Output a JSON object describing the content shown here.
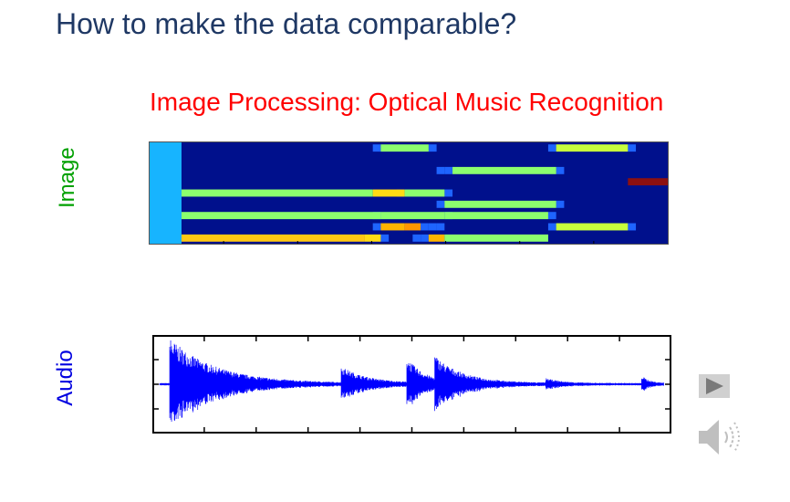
{
  "slide": {
    "title": "How to make the data comparable?",
    "subtitle": "Image Processing: Optical Music Recognition"
  },
  "labels": {
    "image": "Image",
    "audio": "Audio"
  },
  "colors": {
    "title": "#1f3864",
    "subtitle": "#ff0000",
    "image_label": "#00a000",
    "audio_label": "#0000e0",
    "roll_background": "#00108c",
    "waveform": "#0000ff"
  },
  "piano_roll": {
    "rows": 8,
    "cols": 65,
    "background": "#00108c",
    "lead_block": {
      "col_end": 4,
      "color": "#17b4ff"
    },
    "notes": [
      {
        "row": 0,
        "start": 29,
        "end": 35,
        "color": "#8cff6e"
      },
      {
        "row": 0,
        "start": 51,
        "end": 60,
        "color": "#c8ff3c"
      },
      {
        "row": 2,
        "start": 38,
        "end": 51,
        "color": "#8cff6e"
      },
      {
        "row": 3,
        "start": 60,
        "end": 65,
        "color": "#8c1010"
      },
      {
        "row": 4,
        "start": 4,
        "end": 28,
        "color": "#8cff6e"
      },
      {
        "row": 4,
        "start": 28,
        "end": 32,
        "color": "#ffdc14"
      },
      {
        "row": 4,
        "start": 32,
        "end": 37,
        "color": "#8cff6e"
      },
      {
        "row": 5,
        "start": 37,
        "end": 51,
        "color": "#8cff6e"
      },
      {
        "row": 6,
        "start": 4,
        "end": 29,
        "color": "#8cff6e"
      },
      {
        "row": 6,
        "start": 29,
        "end": 37,
        "color": "#8cff6e"
      },
      {
        "row": 6,
        "start": 37,
        "end": 50,
        "color": "#8cff6e"
      },
      {
        "row": 7,
        "start": 29,
        "end": 32,
        "color": "#ffb400"
      },
      {
        "row": 7,
        "start": 32,
        "end": 34,
        "color": "#ff9600"
      },
      {
        "row": 7,
        "start": 51,
        "end": 60,
        "color": "#c8ff3c"
      },
      {
        "row": 8,
        "start": 4,
        "end": 27,
        "color": "#ffc814"
      },
      {
        "row": 8,
        "start": 27,
        "end": 29,
        "color": "#ffdc14"
      },
      {
        "row": 8,
        "start": 35,
        "end": 37,
        "color": "#ffb400"
      },
      {
        "row": 8,
        "start": 37,
        "end": 50,
        "color": "#8cff6e"
      }
    ],
    "halos": [
      {
        "row": 0,
        "col": 28
      },
      {
        "row": 0,
        "col": 35
      },
      {
        "row": 0,
        "col": 50
      },
      {
        "row": 0,
        "col": 60
      },
      {
        "row": 2,
        "col": 36
      },
      {
        "row": 2,
        "col": 37
      },
      {
        "row": 2,
        "col": 51
      },
      {
        "row": 4,
        "col": 31
      },
      {
        "row": 4,
        "col": 37
      },
      {
        "row": 5,
        "col": 36
      },
      {
        "row": 5,
        "col": 51
      },
      {
        "row": 6,
        "col": 28
      },
      {
        "row": 6,
        "col": 37
      },
      {
        "row": 6,
        "col": 50
      },
      {
        "row": 7,
        "col": 28
      },
      {
        "row": 7,
        "col": 34
      },
      {
        "row": 7,
        "col": 35
      },
      {
        "row": 7,
        "col": 36
      },
      {
        "row": 7,
        "col": 50
      },
      {
        "row": 7,
        "col": 60
      },
      {
        "row": 8,
        "col": 29
      },
      {
        "row": 8,
        "col": 33
      },
      {
        "row": 8,
        "col": 34
      }
    ]
  },
  "waveform": {
    "onsets": [
      {
        "t": 0.02,
        "amp": 0.92,
        "decay": 0.09
      },
      {
        "t": 0.36,
        "amp": 0.32,
        "decay": 0.05
      },
      {
        "t": 0.49,
        "amp": 0.5,
        "decay": 0.035
      },
      {
        "t": 0.545,
        "amp": 0.46,
        "decay": 0.06
      },
      {
        "t": 0.765,
        "amp": 0.09,
        "decay": 0.03
      },
      {
        "t": 0.955,
        "amp": 0.16,
        "decay": 0.015
      }
    ],
    "floor": 0.025
  },
  "media_controls": {
    "play_icon": "play-icon",
    "speaker_icon": "speaker-icon"
  }
}
